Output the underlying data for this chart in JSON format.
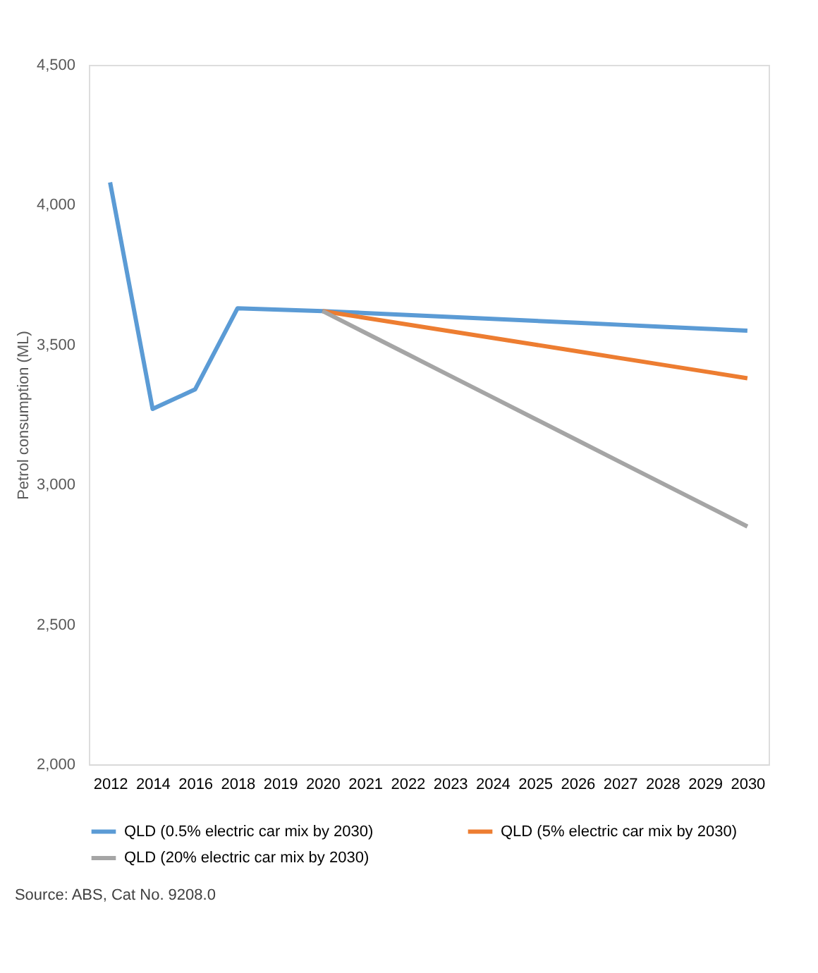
{
  "chart_data": {
    "type": "line",
    "ylabel": "Petrol consumption (ML)",
    "categories": [
      "2012",
      "2014",
      "2016",
      "2018",
      "2019",
      "2020",
      "2021",
      "2022",
      "2023",
      "2024",
      "2025",
      "2026",
      "2027",
      "2028",
      "2029",
      "2030"
    ],
    "series": [
      {
        "name": "QLD (0.5% electric car mix by 2030)",
        "color": "#5b9bd5",
        "values": [
          4080,
          3270,
          3340,
          3630,
          3625,
          3620,
          3613,
          3606,
          3599,
          3592,
          3585,
          3578,
          3571,
          3564,
          3557,
          3550
        ]
      },
      {
        "name": "QLD (5% electric car mix by 2030)",
        "color": "#ed7d31",
        "values": [
          null,
          null,
          null,
          null,
          null,
          3620,
          3596,
          3572,
          3548,
          3524,
          3500,
          3476,
          3452,
          3428,
          3404,
          3380
        ]
      },
      {
        "name": "QLD (20% electric car mix by 2030)",
        "color": "#a5a5a5",
        "values": [
          null,
          null,
          null,
          null,
          null,
          3620,
          3543,
          3466,
          3389,
          3312,
          3235,
          3158,
          3081,
          3004,
          2927,
          2850
        ]
      }
    ],
    "ylim": [
      2000,
      4500
    ],
    "yticks": [
      {
        "value": 2000,
        "label": "2,000"
      },
      {
        "value": 2500,
        "label": "2,500"
      },
      {
        "value": 3000,
        "label": "3,000"
      },
      {
        "value": 3500,
        "label": "3,500"
      },
      {
        "value": 4000,
        "label": "4,000"
      },
      {
        "value": 4500,
        "label": "4,500"
      }
    ],
    "grid": false,
    "legend": "bottom",
    "marker": "none",
    "line_style": "solid",
    "annotations": [
      "Source: ABS, Cat No. 9208.0"
    ]
  }
}
